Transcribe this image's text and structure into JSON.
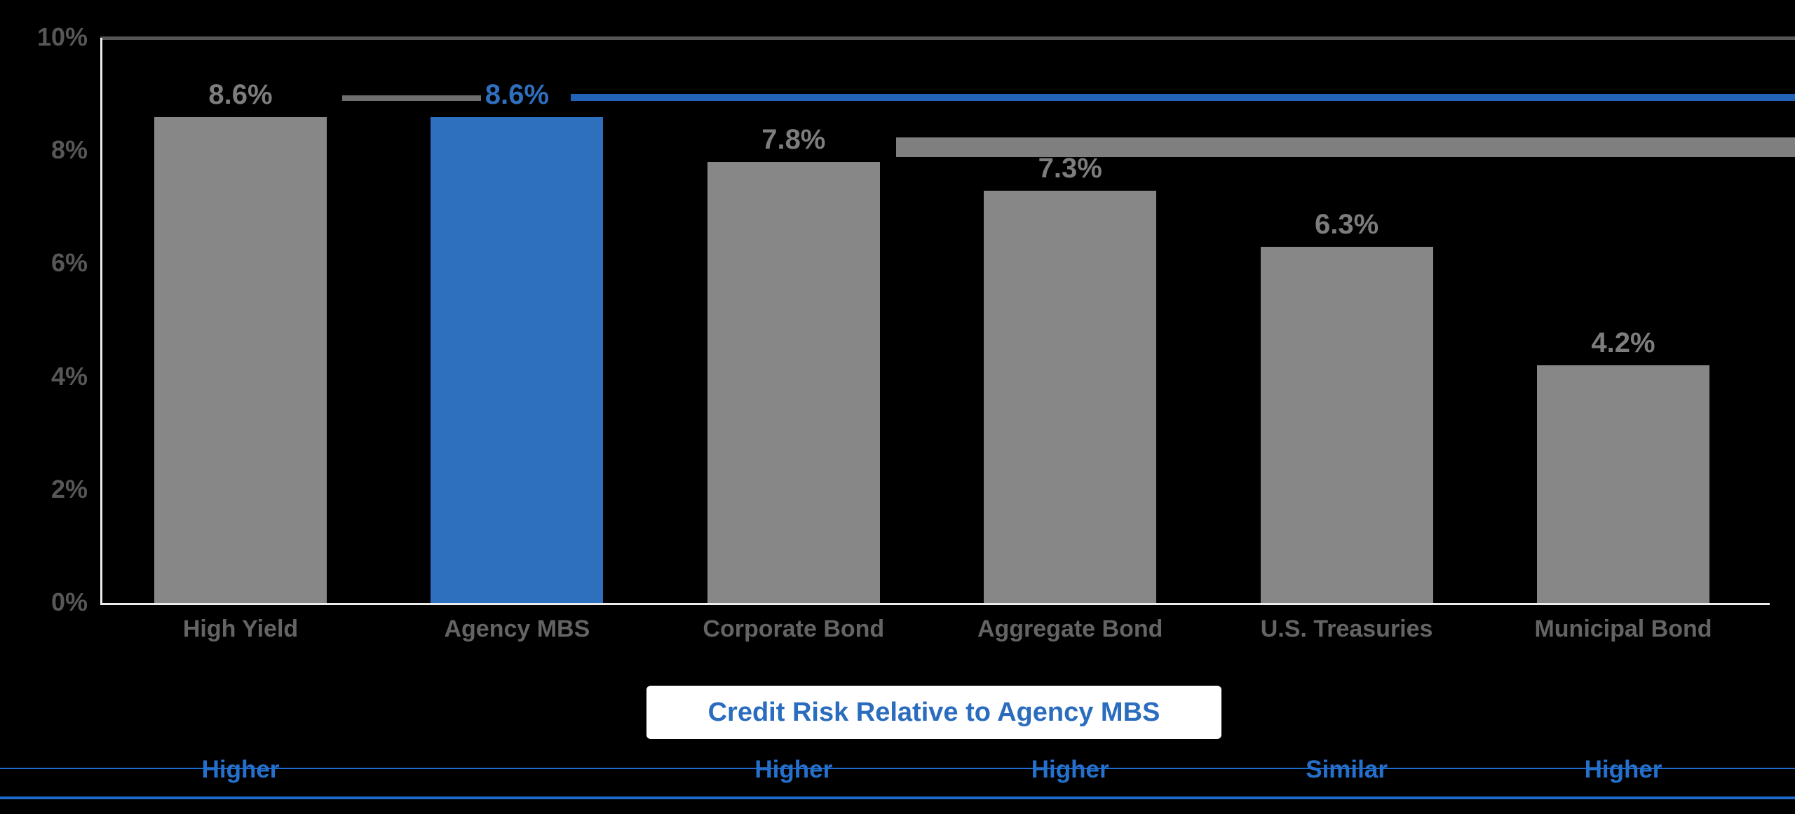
{
  "chart_data": {
    "type": "bar",
    "title": "Credit Risk Relative to Agency MBS",
    "categories": [
      "High Yield",
      "Agency MBS",
      "Corporate Bond",
      "Aggregate Bond",
      "U.S. Treasuries",
      "Municipal Bond"
    ],
    "values": [
      8.6,
      8.6,
      7.8,
      7.3,
      6.3,
      4.2
    ],
    "value_labels": [
      "8.6%",
      "8.6%",
      "7.8%",
      "7.3%",
      "6.3%",
      "4.2%"
    ],
    "highlight_category": "Agency MBS",
    "highlight_index": 1,
    "xlabel": "",
    "ylabel": "",
    "ylim": [
      0,
      10
    ],
    "y_ticks": [
      "10%",
      "8%",
      "6%",
      "4%",
      "2%",
      "0%"
    ],
    "y_tick_values": [
      10,
      8,
      6,
      4,
      2,
      0
    ],
    "grid": "single dark horizontal gridline at 10% only",
    "legend": "none",
    "reference_line": {
      "level_label": "8.6%",
      "description": "blue horizontal line at Agency MBS yield level extending to right edge"
    }
  },
  "risk_row": {
    "heading": "Credit Risk Relative to Agency MBS",
    "labels": [
      "Higher",
      "",
      "Higher",
      "Higher",
      "Similar",
      "Higher"
    ]
  },
  "colors": {
    "background": "#000000",
    "bar_gray": "#878787",
    "bar_highlight_blue": "#2E6FBE",
    "value_label_gray": "#7d7d7d",
    "value_label_blue": "#2E6FBE",
    "category_label_gray": "#646464",
    "y_tick_gray": "#575757",
    "top_gridline_gray": "#555555",
    "axis_white": "#ececec",
    "reference_line_blue": "#2263B8",
    "reference_lead_gray": "#6f6f6f",
    "side_band_gray": "#7f7f7f",
    "title_text_blue": "#2A6CBE",
    "title_box_white": "#ffffff",
    "risk_label_blue": "#2470CC",
    "bottom_rule_blue": "#1E6BCE"
  }
}
